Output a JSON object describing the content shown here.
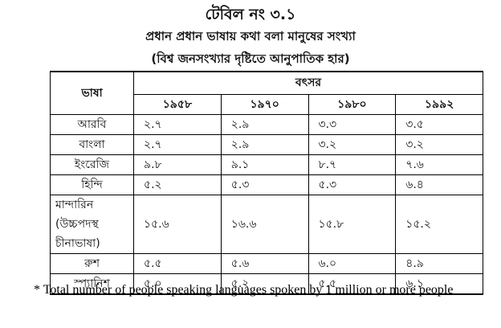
{
  "title": "টেবিল নং ৩.১",
  "subtitle": "প্রধান প্রধান ভাষায় কথা বলা মানুষের সংখ্যা",
  "note": "(বিশ্ব জনসংখ্যার দৃষ্টিতে আনুপাতিক হার)",
  "table": {
    "header_language": "ভাষা",
    "header_year": "বৎসর",
    "years": [
      "১৯৫৮",
      "১৯৭০",
      "১৯৮০",
      "১৯৯২"
    ],
    "rows": [
      {
        "language": "আরবি",
        "values": [
          "২.৭",
          "২.৯",
          "৩.৩",
          "৩.৫"
        ]
      },
      {
        "language": "বাংলা",
        "values": [
          "২.৭",
          "২.৯",
          "৩.২",
          "৩.২"
        ]
      },
      {
        "language": "ইংরেজি",
        "values": [
          "৯.৮",
          "৯.১",
          "৮.৭",
          "৭.৬"
        ]
      },
      {
        "language": "হিন্দি",
        "values": [
          "৫.২",
          "৫.৩",
          "৫.৩",
          "৬.৪"
        ]
      },
      {
        "language": "মান্দারিন (উচ্চপদস্থ চীনাভাষা)",
        "values": [
          "১৫.৬",
          "১৬.৬",
          "১৫.৮",
          "১৫.২"
        ]
      },
      {
        "language": "রুশ",
        "values": [
          "৫.৫",
          "৫.৬",
          "৬.০",
          "৪.৯"
        ]
      },
      {
        "language": "স্প্যানিশ",
        "values": [
          "৫.০",
          "৫.২",
          "৫.৫",
          "৬.১"
        ]
      }
    ]
  },
  "footnote": "* Total number of people speaking languages spoken by 1 million or more people"
}
